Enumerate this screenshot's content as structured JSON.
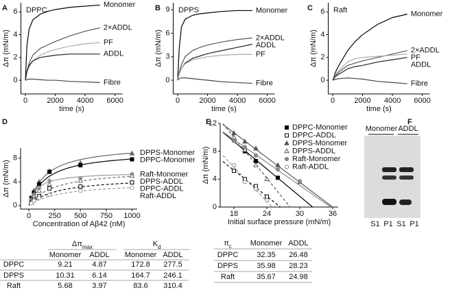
{
  "chart_data": [
    {
      "panel": "A",
      "type": "line",
      "title": "DPPC",
      "xlabel": "time (s)",
      "ylabel": "Δπ (mN/m)",
      "xlim": [
        -300,
        6500
      ],
      "xticks": [
        0,
        2000,
        4000,
        6000
      ],
      "ylim": [
        -1.2,
        6.8
      ],
      "yticks": [
        0,
        2,
        4,
        6
      ],
      "series": [
        {
          "name": "Monomer",
          "color": "#000000",
          "x": [
            0,
            100,
            250,
            500,
            1000,
            1500,
            2000,
            3000,
            4000,
            5000
          ],
          "values": [
            0,
            3.0,
            4.5,
            5.3,
            5.8,
            6.05,
            6.2,
            6.4,
            6.5,
            6.6
          ]
        },
        {
          "name": "2×ADDL",
          "color": "#555555",
          "x": [
            0,
            100,
            250,
            500,
            1000,
            1500,
            2000,
            3000,
            4000,
            5000
          ],
          "values": [
            0,
            0.8,
            1.5,
            2.2,
            2.8,
            3.1,
            3.4,
            3.9,
            4.3,
            4.6
          ]
        },
        {
          "name": "PF",
          "color": "#aaaaaa",
          "x": [
            0,
            100,
            250,
            500,
            1000,
            1500,
            2000,
            3000,
            4000,
            5000
          ],
          "values": [
            0,
            0.7,
            1.2,
            1.7,
            2.2,
            2.5,
            2.7,
            3.0,
            3.2,
            3.3
          ]
        },
        {
          "name": "ADDL",
          "color": "#222222",
          "x": [
            0,
            100,
            250,
            500,
            1000,
            1500,
            2000,
            3000,
            4000,
            5000
          ],
          "values": [
            0,
            0.8,
            1.3,
            1.7,
            2.0,
            2.1,
            2.2,
            2.3,
            2.3,
            2.3
          ]
        },
        {
          "name": "Fibre",
          "color": "#444444",
          "x": [
            0,
            100,
            250,
            500,
            1000,
            1500,
            2000,
            3000,
            4000,
            5000
          ],
          "values": [
            0,
            0.05,
            0.1,
            0.1,
            0.05,
            0,
            0,
            -0.1,
            -0.15,
            -0.2
          ]
        }
      ]
    },
    {
      "panel": "B",
      "type": "line",
      "title": "DPPS",
      "xlabel": "time (s)",
      "ylabel": "Δπ (mN/m)",
      "xlim": [
        -300,
        6500
      ],
      "xticks": [
        0,
        2000,
        4000,
        6000
      ],
      "ylim": [
        -1.75,
        9.9
      ],
      "yticks": [
        0,
        3,
        6,
        9
      ],
      "series": [
        {
          "name": "Monomer",
          "color": "#000000",
          "x": [
            0,
            100,
            250,
            500,
            1000,
            1500,
            2000,
            3000,
            4000,
            5000
          ],
          "values": [
            0,
            4.0,
            6.8,
            7.8,
            8.3,
            8.5,
            8.6,
            8.8,
            8.9,
            8.9
          ]
        },
        {
          "name": "2×ADDL",
          "color": "#555555",
          "x": [
            0,
            100,
            250,
            500,
            1000,
            1500,
            2000,
            3000,
            4000,
            5000
          ],
          "values": [
            0,
            1.0,
            2.0,
            3.0,
            3.8,
            4.2,
            4.5,
            4.9,
            5.2,
            5.4
          ]
        },
        {
          "name": "ADDL",
          "color": "#222222",
          "x": [
            0,
            100,
            250,
            500,
            1000,
            1500,
            2000,
            3000,
            4000,
            5000
          ],
          "values": [
            0,
            0.8,
            1.5,
            2.2,
            2.8,
            3.1,
            3.4,
            3.8,
            4.2,
            4.6
          ]
        },
        {
          "name": "PF",
          "color": "#aaaaaa",
          "x": [
            0,
            100,
            250,
            500,
            1000,
            1500,
            2000,
            3000,
            4000,
            5000
          ],
          "values": [
            0,
            0.8,
            1.5,
            2.1,
            2.6,
            2.8,
            3.0,
            3.2,
            3.3,
            3.3
          ]
        },
        {
          "name": "Fibre",
          "color": "#444444",
          "x": [
            0,
            100,
            250,
            500,
            1000,
            1500,
            2000,
            3000,
            4000,
            5000
          ],
          "values": [
            0,
            0.2,
            0.3,
            0.3,
            0.2,
            0.1,
            0,
            -0.2,
            -0.3,
            -0.4
          ]
        }
      ]
    },
    {
      "panel": "C",
      "type": "line",
      "title": "Raft",
      "xlabel": "time (s)",
      "ylabel": "Δπ (mN/m)",
      "xlim": [
        -300,
        6500
      ],
      "xticks": [
        0,
        2000,
        4000,
        6000
      ],
      "ylim": [
        -1.2,
        6.8
      ],
      "yticks": [
        0,
        2,
        4,
        6
      ],
      "series": [
        {
          "name": "Monomer",
          "color": "#000000",
          "x": [
            0,
            100,
            250,
            500,
            1000,
            1500,
            2000,
            3000,
            4000,
            5000
          ],
          "values": [
            0,
            0.4,
            0.9,
            1.5,
            2.6,
            3.4,
            4.0,
            4.9,
            5.5,
            5.8
          ]
        },
        {
          "name": "2×ADDL",
          "color": "#555555",
          "x": [
            0,
            100,
            250,
            500,
            1000,
            1500,
            2000,
            3000,
            4000,
            5000
          ],
          "values": [
            0,
            0.2,
            0.5,
            0.8,
            1.3,
            1.5,
            1.7,
            2.0,
            2.3,
            2.6
          ]
        },
        {
          "name": "PF",
          "color": "#aaaaaa",
          "x": [
            0,
            100,
            250,
            500,
            1000,
            1500,
            2000,
            3000,
            4000,
            5000
          ],
          "values": [
            0,
            0.3,
            0.6,
            1.0,
            1.6,
            1.9,
            2.0,
            2.1,
            2.2,
            2.3
          ]
        },
        {
          "name": "ADDL",
          "color": "#222222",
          "x": [
            0,
            100,
            250,
            500,
            1000,
            1500,
            2000,
            3000,
            4000,
            5000
          ],
          "values": [
            0,
            0.2,
            0.4,
            0.6,
            1.0,
            1.2,
            1.3,
            1.6,
            1.8,
            2.0
          ]
        },
        {
          "name": "Fibre",
          "color": "#444444",
          "x": [
            0,
            100,
            250,
            500,
            1000,
            1500,
            2000,
            3000,
            4000,
            5000
          ],
          "values": [
            0,
            0.05,
            0.1,
            0.15,
            0.2,
            0.15,
            0.1,
            -0.1,
            -0.2,
            -0.3
          ]
        }
      ]
    },
    {
      "panel": "D",
      "type": "scatter",
      "fit": "hyperbolic",
      "xlabel": "Concentration of Aβ42 (nM)",
      "ylabel": "Δπ (mN/m)",
      "xlim": [
        -80,
        1050
      ],
      "xticks": [
        0,
        250,
        500,
        750,
        1000
      ],
      "ylim": [
        -0.6,
        9.7
      ],
      "yticks": [
        0,
        4,
        8
      ],
      "series": [
        {
          "name": "DPPS-Monomer",
          "color": "#666666",
          "marker": "triangle",
          "dash": false,
          "x": [
            25,
            50,
            100,
            200,
            500,
            1000
          ],
          "values": [
            1.2,
            2.5,
            4.0,
            5.8,
            7.2,
            8.8
          ]
        },
        {
          "name": "DPPC-Monomer",
          "color": "#000000",
          "marker": "square",
          "dash": false,
          "x": [
            25,
            50,
            100,
            200,
            500,
            1000
          ],
          "values": [
            1.3,
            2.2,
            3.6,
            5.7,
            6.8,
            7.8
          ]
        },
        {
          "name": "Raft-Monomer",
          "color": "#999999",
          "marker": "circle",
          "dash": false,
          "x": [
            25,
            50,
            100,
            200,
            500,
            1000
          ],
          "values": [
            1.0,
            1.8,
            3.0,
            4.2,
            4.6,
            5.3
          ]
        },
        {
          "name": "DPPS-ADDL",
          "color": "#666666",
          "marker": "triangle-open",
          "dash": true,
          "x": [
            25,
            50,
            100,
            200,
            500,
            1000
          ],
          "values": [
            0.8,
            1.5,
            2.5,
            3.6,
            4.2,
            5.0
          ]
        },
        {
          "name": "DPPC-ADDL",
          "color": "#000000",
          "marker": "square-open",
          "dash": true,
          "x": [
            25,
            50,
            100,
            200,
            500,
            1000
          ],
          "values": [
            0.5,
            1.0,
            1.6,
            2.9,
            3.2,
            3.9
          ]
        },
        {
          "name": "Raft-ADDL",
          "color": "#999999",
          "marker": "circle-open",
          "dash": true,
          "x": [
            25,
            50,
            100,
            200,
            500,
            1000
          ],
          "values": [
            0.4,
            0.8,
            1.3,
            1.8,
            2.5,
            3.0
          ]
        }
      ]
    },
    {
      "panel": "E",
      "type": "scatter",
      "fit": "linear",
      "xlabel": "Initial surface pressure (mN/m)",
      "ylabel": "Δπ (mN/m)",
      "xlim": [
        15.5,
        37
      ],
      "xticks": [
        18,
        24,
        30,
        36
      ],
      "ylim": [
        0,
        12
      ],
      "yticks": [
        0,
        4,
        8,
        12
      ],
      "series": [
        {
          "name": "DPPC-Monomer",
          "color": "#000000",
          "marker": "square",
          "dash": false,
          "x": [
            18,
            20,
            22,
            26
          ],
          "values": [
            9.6,
            8.0,
            6.6,
            4.2
          ]
        },
        {
          "name": "DPPC-ADDL",
          "color": "#000000",
          "marker": "square-open",
          "dash": true,
          "x": [
            18,
            20,
            22,
            24
          ],
          "values": [
            5.2,
            4.0,
            3.0,
            1.5
          ]
        },
        {
          "name": "DPPS-Monomer",
          "color": "#555555",
          "marker": "triangle",
          "dash": false,
          "x": [
            18,
            20,
            22,
            26,
            30
          ],
          "values": [
            10.6,
            9.4,
            8.4,
            6.0,
            3.6
          ]
        },
        {
          "name": "DPPS-ADDL",
          "color": "#555555",
          "marker": "triangle-open",
          "dash": true,
          "x": [
            18,
            20,
            22,
            24
          ],
          "values": [
            10.0,
            8.2,
            6.0,
            4.0
          ]
        },
        {
          "name": "Raft-Monomer",
          "color": "#888888",
          "marker": "circle",
          "dash": false,
          "x": [
            18,
            20,
            22,
            26,
            30
          ],
          "values": [
            9.5,
            8.6,
            7.4,
            5.4,
            3.7
          ]
        },
        {
          "name": "Raft-ADDL",
          "color": "#888888",
          "marker": "circle-open",
          "dash": true,
          "x": [
            18,
            20,
            22,
            24
          ],
          "values": [
            6.0,
            3.6,
            2.6,
            1.0
          ]
        }
      ]
    }
  ],
  "tables": [
    {
      "groups": [
        {
          "text": "Δπ",
          "sub": "max"
        },
        {
          "text": "K",
          "sub": "d"
        }
      ],
      "columns": [
        "Monomer",
        "ADDL",
        "Monomer",
        "ADDL"
      ],
      "rows": [
        {
          "label": "DPPC",
          "values": [
            9.21,
            4.87,
            172.8,
            277.5
          ]
        },
        {
          "label": "DPPS",
          "values": [
            10.31,
            6.14,
            164.7,
            246.1
          ]
        },
        {
          "label": "Raft",
          "values": [
            5.68,
            3.97,
            83.6,
            310.4
          ]
        }
      ]
    },
    {
      "corner": {
        "text": "π",
        "sub": "c"
      },
      "columns": [
        "Monomer",
        "ADDL"
      ],
      "rows": [
        {
          "label": "DPPC",
          "values": [
            32.35,
            26.48
          ]
        },
        {
          "label": "DPPS",
          "values": [
            35.98,
            28.23
          ]
        },
        {
          "label": "Raft",
          "values": [
            35.67,
            24.98
          ]
        }
      ]
    }
  ],
  "gel": {
    "panel": "F",
    "groups": [
      "Monomer",
      "ADDL"
    ],
    "lanes": [
      "S1",
      "P1",
      "S1",
      "P1"
    ]
  }
}
